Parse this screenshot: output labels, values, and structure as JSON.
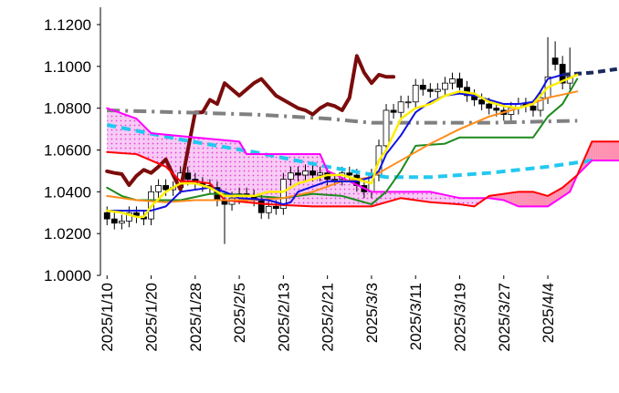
{
  "chart_data": {
    "type": "candlestick",
    "ylim": [
      1.0,
      1.125
    ],
    "yticks": [
      {
        "value": 1.0,
        "label": "1.0000"
      },
      {
        "value": 1.02,
        "label": "1.0200"
      },
      {
        "value": 1.04,
        "label": "1.0400"
      },
      {
        "value": 1.06,
        "label": "1.0600"
      },
      {
        "value": 1.08,
        "label": "1.0800"
      },
      {
        "value": 1.1,
        "label": "1.1000"
      },
      {
        "value": 1.12,
        "label": "1.1200"
      }
    ],
    "xlim": [
      -0.9,
      69.5
    ],
    "xticks": [
      {
        "value": 0,
        "label": "2025/1/10"
      },
      {
        "value": 6,
        "label": "2025/1/20"
      },
      {
        "value": 12,
        "label": "2025/1/28"
      },
      {
        "value": 18,
        "label": "2025/2/5"
      },
      {
        "value": 24,
        "label": "2025/2/13"
      },
      {
        "value": 30,
        "label": "2025/2/21"
      },
      {
        "value": 36,
        "label": "2025/3/3"
      },
      {
        "value": 42,
        "label": "2025/3/11"
      },
      {
        "value": 48,
        "label": "2025/3/19"
      },
      {
        "value": 54,
        "label": "2025/3/27"
      },
      {
        "value": 60,
        "label": "2025/4/4"
      }
    ],
    "candle_colors": {
      "up": "#ffffff",
      "down": "#000000",
      "outline": "#000000"
    },
    "candles": {
      "x": [
        0,
        1,
        2,
        3,
        4,
        5,
        6,
        7,
        8,
        9,
        10,
        11,
        12,
        13,
        14,
        15,
        16,
        17,
        18,
        19,
        20,
        21,
        22,
        23,
        24,
        25,
        26,
        27,
        28,
        29,
        30,
        31,
        32,
        33,
        34,
        35,
        36,
        37,
        38,
        39,
        40,
        41,
        42,
        43,
        44,
        45,
        46,
        47,
        48,
        49,
        50,
        51,
        52,
        53,
        54,
        55,
        56,
        57,
        58,
        59,
        60,
        61,
        62,
        63
      ],
      "open": [
        1.03,
        1.027,
        1.025,
        1.026,
        1.03,
        1.028,
        1.027,
        1.04,
        1.043,
        1.041,
        1.042,
        1.049,
        1.046,
        1.044,
        1.043,
        1.042,
        1.036,
        1.034,
        1.037,
        1.039,
        1.038,
        1.036,
        1.03,
        1.033,
        1.032,
        1.046,
        1.049,
        1.048,
        1.05,
        1.048,
        1.049,
        1.046,
        1.046,
        1.049,
        1.048,
        1.043,
        1.04,
        1.048,
        1.062,
        1.079,
        1.078,
        1.083,
        1.083,
        1.091,
        1.089,
        1.088,
        1.089,
        1.092,
        1.094,
        1.09,
        1.086,
        1.084,
        1.082,
        1.08,
        1.079,
        1.077,
        1.08,
        1.082,
        1.081,
        1.079,
        1.085,
        1.104,
        1.101,
        1.092
      ],
      "high": [
        1.033,
        1.03,
        1.029,
        1.033,
        1.033,
        1.031,
        1.043,
        1.046,
        1.046,
        1.045,
        1.052,
        1.052,
        1.049,
        1.047,
        1.046,
        1.045,
        1.039,
        1.04,
        1.042,
        1.042,
        1.041,
        1.039,
        1.036,
        1.036,
        1.049,
        1.052,
        1.052,
        1.053,
        1.053,
        1.052,
        1.052,
        1.049,
        1.052,
        1.052,
        1.051,
        1.046,
        1.051,
        1.065,
        1.082,
        1.082,
        1.086,
        1.086,
        1.094,
        1.094,
        1.092,
        1.092,
        1.095,
        1.097,
        1.097,
        1.093,
        1.089,
        1.087,
        1.085,
        1.083,
        1.082,
        1.083,
        1.085,
        1.085,
        1.084,
        1.088,
        1.114,
        1.112,
        1.105,
        1.109
      ],
      "low": [
        1.024,
        1.022,
        1.022,
        1.023,
        1.025,
        1.024,
        1.024,
        1.037,
        1.038,
        1.038,
        1.039,
        1.043,
        1.041,
        1.04,
        1.039,
        1.033,
        1.015,
        1.031,
        1.034,
        1.035,
        1.033,
        1.027,
        1.027,
        1.029,
        1.029,
        1.043,
        1.045,
        1.045,
        1.045,
        1.045,
        1.043,
        1.043,
        1.043,
        1.045,
        1.04,
        1.037,
        1.037,
        1.045,
        1.059,
        1.075,
        1.075,
        1.08,
        1.08,
        1.086,
        1.085,
        1.085,
        1.086,
        1.089,
        1.087,
        1.083,
        1.081,
        1.079,
        1.077,
        1.076,
        1.074,
        1.074,
        1.077,
        1.078,
        1.076,
        1.076,
        1.082,
        1.098,
        1.089,
        1.089
      ],
      "close": [
        1.027,
        1.025,
        1.026,
        1.03,
        1.028,
        1.027,
        1.04,
        1.043,
        1.041,
        1.042,
        1.049,
        1.046,
        1.044,
        1.043,
        1.042,
        1.036,
        1.034,
        1.037,
        1.039,
        1.038,
        1.036,
        1.03,
        1.033,
        1.032,
        1.046,
        1.049,
        1.048,
        1.05,
        1.048,
        1.049,
        1.046,
        1.046,
        1.049,
        1.048,
        1.043,
        1.04,
        1.048,
        1.062,
        1.079,
        1.078,
        1.083,
        1.083,
        1.091,
        1.089,
        1.088,
        1.089,
        1.092,
        1.094,
        1.09,
        1.086,
        1.084,
        1.082,
        1.08,
        1.079,
        1.077,
        1.08,
        1.082,
        1.081,
        1.079,
        1.085,
        1.095,
        1.101,
        1.092,
        1.095
      ]
    },
    "cloud": {
      "series": [
        4,
        5
      ],
      "colors": [
        "#f7c8f4",
        "#ff8fb0"
      ],
      "dot_color": "#e03ad8"
    },
    "series": [
      {
        "color": "#7b0c0c",
        "width": 4,
        "x": [
          0,
          1,
          2,
          3,
          4,
          5,
          6,
          7,
          8,
          9,
          10,
          11,
          12,
          13,
          14,
          15,
          16,
          17,
          18,
          19,
          20,
          21,
          22,
          23,
          24,
          25,
          26,
          27,
          28,
          29,
          30,
          31,
          32,
          33,
          34,
          35,
          36,
          37,
          38,
          39
        ],
        "values": [
          1.0498,
          1.049,
          1.0485,
          1.0432,
          1.0476,
          1.0505,
          1.049,
          1.052,
          1.0555,
          1.048,
          1.041,
          1.06,
          1.078,
          1.078,
          1.084,
          1.082,
          1.092,
          1.089,
          1.086,
          1.089,
          1.092,
          1.094,
          1.09,
          1.086,
          1.084,
          1.082,
          1.08,
          1.079,
          1.077,
          1.08,
          1.082,
          1.081,
          1.079,
          1.085,
          1.105,
          1.097,
          1.092,
          1.096,
          1.095,
          1.095
        ]
      },
      {
        "color": "#808080",
        "width": 4,
        "dash": "14 6 3 6",
        "x": [
          0,
          20,
          30,
          36,
          44,
          52,
          64
        ],
        "values": [
          1.079,
          1.077,
          1.075,
          1.073,
          1.073,
          1.073,
          1.074
        ]
      },
      {
        "color": "#22c8f0",
        "width": 4,
        "dash": "10 6",
        "x": [
          0,
          10,
          20,
          30,
          38,
          44,
          52,
          60,
          66
        ],
        "values": [
          1.072,
          1.065,
          1.059,
          1.052,
          1.047,
          1.047,
          1.049,
          1.052,
          1.055
        ]
      },
      {
        "color": "#1a2a5e",
        "width": 4,
        "dash": "8 5",
        "x": [
          62,
          66,
          70
        ],
        "values": [
          1.096,
          1.097,
          1.099
        ]
      },
      {
        "color": "#ff00ff",
        "width": 2,
        "x": [
          0,
          4,
          6,
          12,
          18,
          19,
          24,
          29,
          30,
          36,
          44,
          48,
          52,
          54,
          56,
          60,
          63,
          64,
          66,
          70
        ],
        "values": [
          1.08,
          1.075,
          1.068,
          1.066,
          1.064,
          1.058,
          1.058,
          1.058,
          1.05,
          1.04,
          1.04,
          1.037,
          1.037,
          1.036,
          1.033,
          1.033,
          1.04,
          1.048,
          1.055,
          1.055
        ]
      },
      {
        "color": "#ff0000",
        "width": 2,
        "x": [
          0,
          4,
          8,
          10,
          12,
          14,
          16,
          22,
          28,
          36,
          40,
          44,
          48,
          50,
          52,
          56,
          58,
          60,
          62,
          64,
          66,
          70
        ],
        "values": [
          1.059,
          1.058,
          1.052,
          1.045,
          1.045,
          1.044,
          1.036,
          1.034,
          1.033,
          1.033,
          1.037,
          1.035,
          1.034,
          1.033,
          1.038,
          1.04,
          1.04,
          1.038,
          1.042,
          1.048,
          1.064,
          1.064
        ]
      },
      {
        "color": "#1e8a1e",
        "width": 2,
        "x": [
          0,
          2,
          4,
          10,
          14,
          16,
          20,
          24,
          26,
          28,
          32,
          36,
          38,
          40,
          42,
          46,
          48,
          52,
          58,
          60,
          62,
          64
        ],
        "values": [
          1.042,
          1.038,
          1.036,
          1.036,
          1.039,
          1.039,
          1.038,
          1.037,
          1.038,
          1.039,
          1.038,
          1.034,
          1.04,
          1.05,
          1.062,
          1.063,
          1.066,
          1.066,
          1.066,
          1.076,
          1.082,
          1.094
        ]
      },
      {
        "color": "#ff8c1a",
        "width": 2,
        "x": [
          0,
          4,
          8,
          12,
          16,
          20,
          24,
          28,
          32,
          36,
          40,
          44,
          48,
          52,
          56,
          60,
          64
        ],
        "values": [
          1.038,
          1.036,
          1.035,
          1.036,
          1.036,
          1.036,
          1.037,
          1.04,
          1.045,
          1.047,
          1.055,
          1.063,
          1.07,
          1.076,
          1.08,
          1.085,
          1.088
        ]
      },
      {
        "color": "#1010e0",
        "width": 2,
        "x": [
          0,
          6,
          8,
          10,
          14,
          16,
          18,
          22,
          24,
          25,
          26,
          30,
          34,
          36,
          37,
          38,
          40,
          42,
          44,
          46,
          48,
          50,
          52,
          54,
          56,
          58,
          59,
          60,
          62
        ],
        "values": [
          1.031,
          1.031,
          1.033,
          1.04,
          1.042,
          1.04,
          1.037,
          1.036,
          1.034,
          1.035,
          1.04,
          1.045,
          1.045,
          1.047,
          1.05,
          1.058,
          1.067,
          1.078,
          1.083,
          1.086,
          1.087,
          1.086,
          1.084,
          1.082,
          1.082,
          1.083,
          1.088,
          1.094,
          1.096
        ]
      },
      {
        "color": "#ffee00",
        "width": 2.5,
        "x": [
          0,
          2,
          4,
          5,
          6,
          8,
          10,
          12,
          14,
          16,
          18,
          20,
          22,
          24,
          26,
          28,
          30,
          32,
          34,
          36,
          37,
          38,
          40,
          42,
          44,
          46,
          48,
          50,
          52,
          54,
          56,
          58,
          60,
          62,
          64
        ],
        "values": [
          1.031,
          1.03,
          1.028,
          1.028,
          1.033,
          1.04,
          1.044,
          1.044,
          1.042,
          1.038,
          1.038,
          1.038,
          1.04,
          1.04,
          1.044,
          1.046,
          1.048,
          1.048,
          1.046,
          1.044,
          1.055,
          1.06,
          1.075,
          1.08,
          1.082,
          1.086,
          1.088,
          1.087,
          1.083,
          1.081,
          1.08,
          1.082,
          1.09,
          1.093,
          1.096
        ]
      }
    ]
  }
}
